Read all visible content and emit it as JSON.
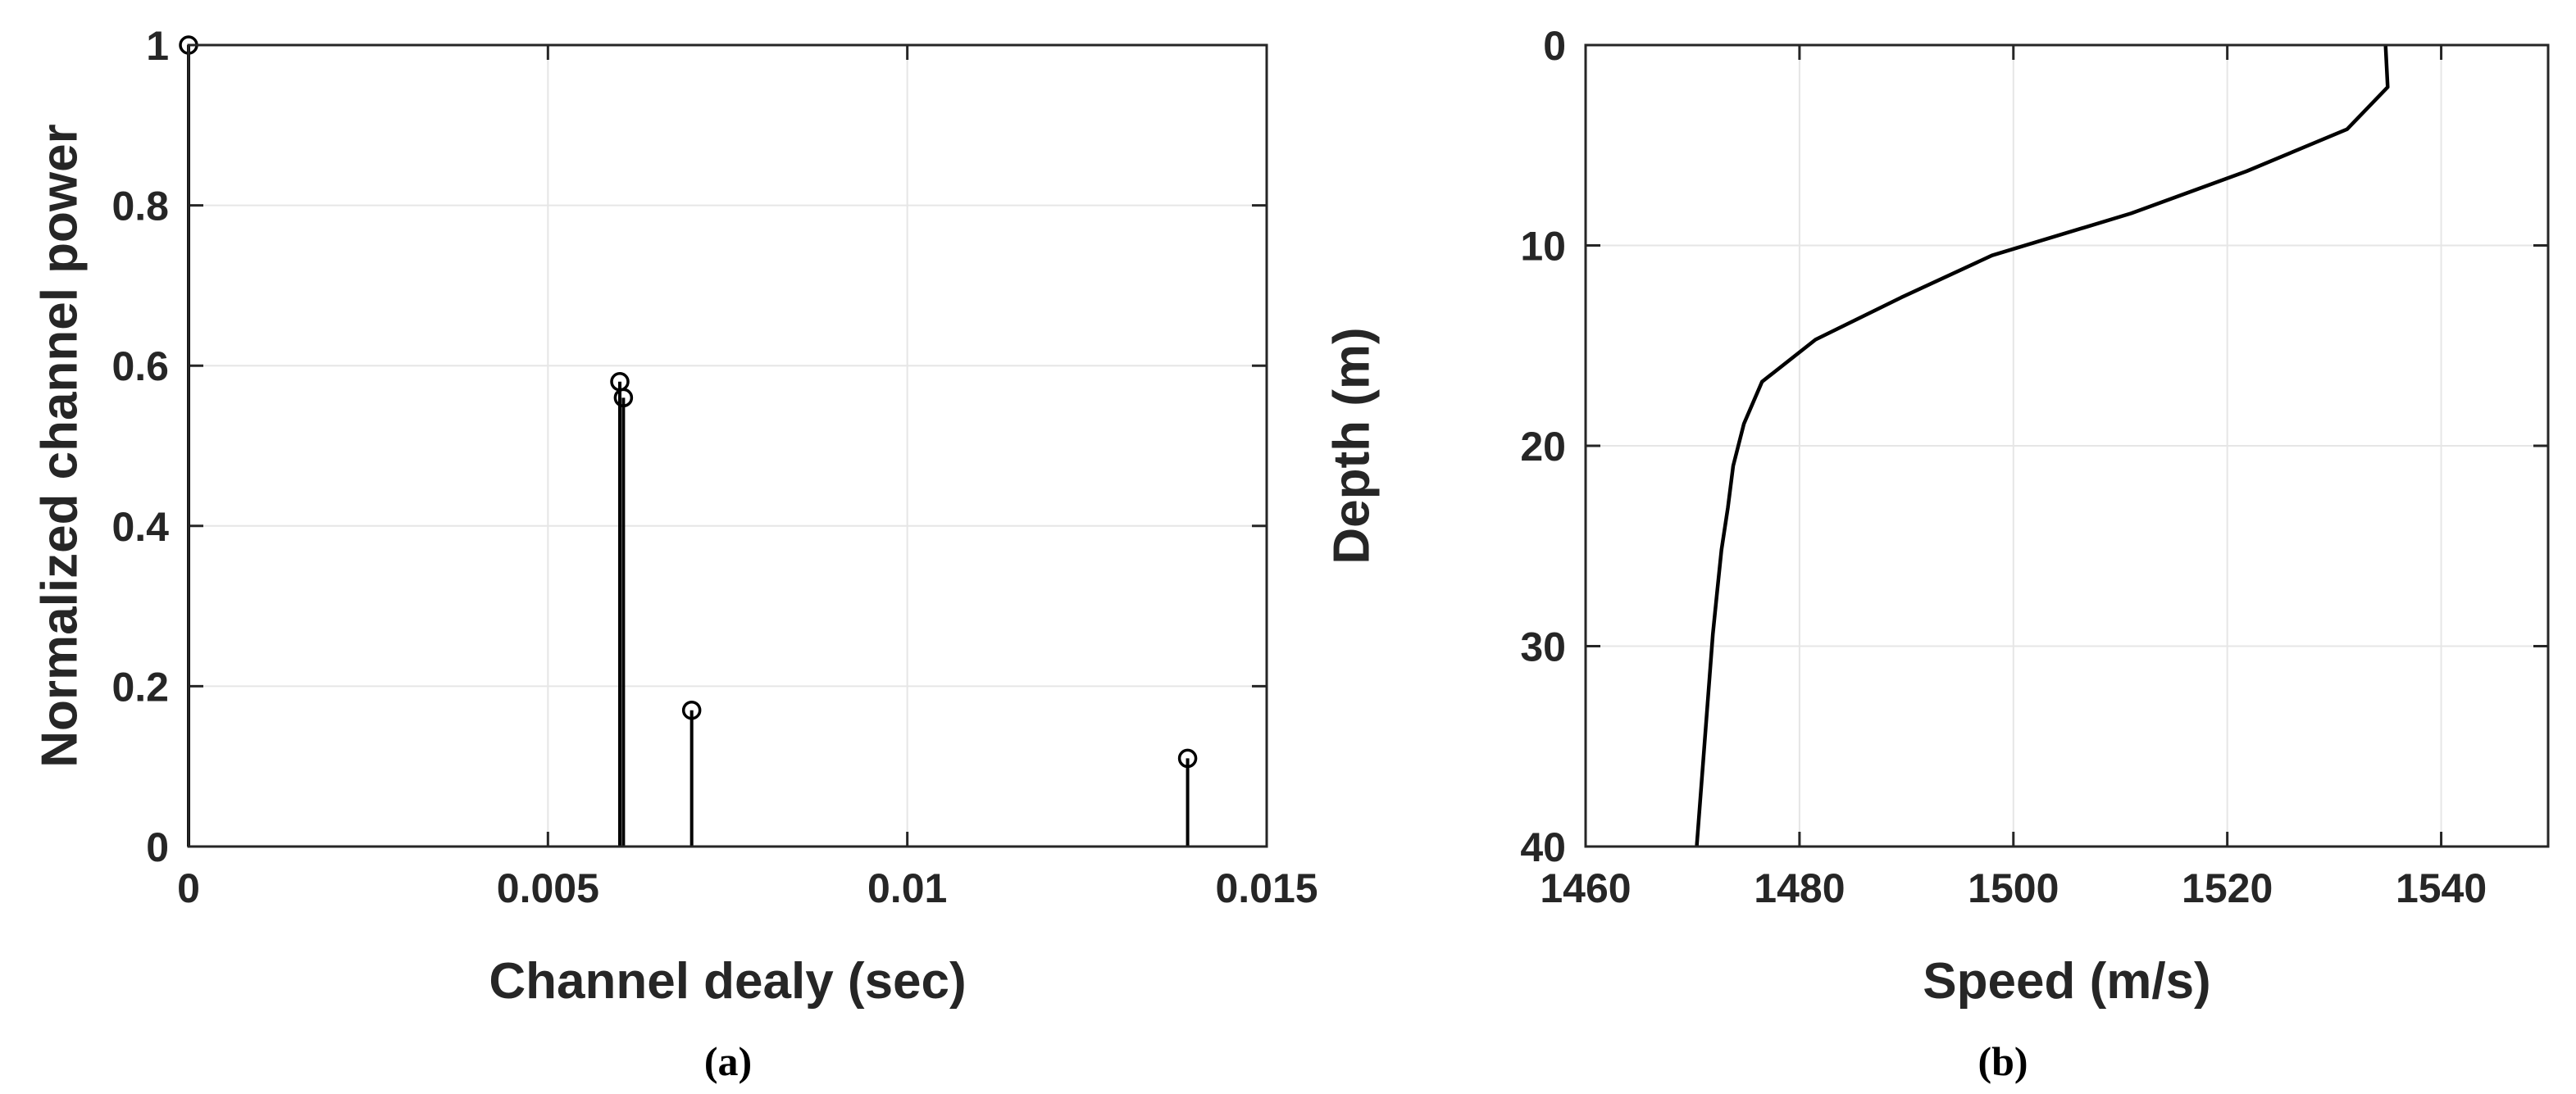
{
  "chart_data": [
    {
      "type": "stem",
      "caption": "(a)",
      "xlabel": "Channel dealy (sec)",
      "ylabel": "Normalized channel power",
      "xlim": [
        0,
        0.015
      ],
      "ylim": [
        0,
        1
      ],
      "xticks": [
        {
          "value": 0,
          "label": "0"
        },
        {
          "value": 0.005,
          "label": "0.005"
        },
        {
          "value": 0.01,
          "label": "0.01"
        },
        {
          "value": 0.015,
          "label": "0.015"
        }
      ],
      "yticks": [
        {
          "value": 0,
          "label": "0"
        },
        {
          "value": 0.2,
          "label": "0.2"
        },
        {
          "value": 0.4,
          "label": "0.4"
        },
        {
          "value": 0.6,
          "label": "0.6"
        },
        {
          "value": 0.8,
          "label": "0.8"
        },
        {
          "value": 1,
          "label": "1"
        }
      ],
      "grid": true,
      "color": "#000000",
      "points": [
        {
          "x": 0,
          "y": 1
        },
        {
          "x": 0.006,
          "y": 0.58
        },
        {
          "x": 0.00605,
          "y": 0.56
        },
        {
          "x": 0.007,
          "y": 0.17
        },
        {
          "x": 0.0139,
          "y": 0.11
        }
      ]
    },
    {
      "type": "line",
      "caption": "(b)",
      "xlabel": "Speed (m/s)",
      "ylabel": "Depth (m)",
      "xlim": [
        1460,
        1550
      ],
      "ylim": [
        0,
        40
      ],
      "y_reversed": true,
      "xticks": [
        {
          "value": 1460,
          "label": "1460"
        },
        {
          "value": 1480,
          "label": "1480"
        },
        {
          "value": 1500,
          "label": "1500"
        },
        {
          "value": 1520,
          "label": "1520"
        },
        {
          "value": 1540,
          "label": "1540"
        }
      ],
      "yticks": [
        {
          "value": 0,
          "label": "0"
        },
        {
          "value": 10,
          "label": "10"
        },
        {
          "value": 20,
          "label": "20"
        },
        {
          "value": 30,
          "label": "30"
        },
        {
          "value": 40,
          "label": "40"
        }
      ],
      "grid": true,
      "color": "#000000",
      "points": [
        {
          "x": 1534.8,
          "y": 0
        },
        {
          "x": 1535.0,
          "y": 2.1
        },
        {
          "x": 1531.2,
          "y": 4.2
        },
        {
          "x": 1521.8,
          "y": 6.3
        },
        {
          "x": 1511.0,
          "y": 8.4
        },
        {
          "x": 1498.0,
          "y": 10.5
        },
        {
          "x": 1489.5,
          "y": 12.6
        },
        {
          "x": 1481.5,
          "y": 14.7
        },
        {
          "x": 1476.5,
          "y": 16.8
        },
        {
          "x": 1474.8,
          "y": 18.9
        },
        {
          "x": 1473.8,
          "y": 21.0
        },
        {
          "x": 1473.3,
          "y": 23.1
        },
        {
          "x": 1472.7,
          "y": 25.2
        },
        {
          "x": 1472.3,
          "y": 27.3
        },
        {
          "x": 1471.9,
          "y": 29.4
        },
        {
          "x": 1471.6,
          "y": 31.5
        },
        {
          "x": 1471.3,
          "y": 33.6
        },
        {
          "x": 1471.0,
          "y": 35.7
        },
        {
          "x": 1470.7,
          "y": 37.8
        },
        {
          "x": 1470.4,
          "y": 39.9
        },
        {
          "x": 1470.4,
          "y": 40
        }
      ]
    }
  ]
}
